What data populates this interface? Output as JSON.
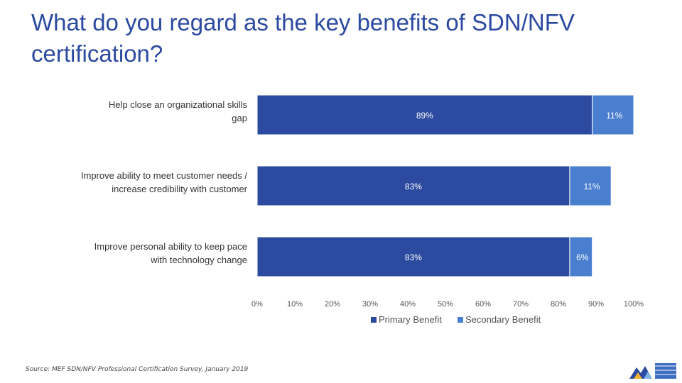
{
  "slide": {
    "title": "What do you regard as the key benefits of SDN/NFV certification?",
    "source": "Source: MEF SDN/NFV Professional Certification Survey, January 2019"
  },
  "colors": {
    "primary": "#2b4aa0",
    "secondary": "#4a7fcf",
    "label_text": "#333333",
    "axis_text": "#555555",
    "title": "#2b4aa0"
  },
  "chart_data": {
    "type": "bar",
    "orientation": "horizontal",
    "stacked": true,
    "title": "",
    "categories": [
      [
        "Help close an organizational skills",
        "gap"
      ],
      [
        "Improve ability to meet customer needs /",
        "increase credibility with customer"
      ],
      [
        "Improve personal ability to keep pace",
        "with technology change"
      ]
    ],
    "series": [
      {
        "name": "Primary Benefit",
        "values": [
          89,
          83,
          83
        ],
        "labels": [
          "89%",
          "83%",
          "83%"
        ],
        "color": "#2b4aa0"
      },
      {
        "name": "Secondary Benefit",
        "values": [
          11,
          11,
          6
        ],
        "labels": [
          "11%",
          "11%",
          "6%"
        ],
        "color": "#4a7fcf"
      }
    ],
    "xlim": [
      0,
      100
    ],
    "xticks": [
      0,
      10,
      20,
      30,
      40,
      50,
      60,
      70,
      80,
      90,
      100
    ],
    "xtick_labels": [
      "0%",
      "10%",
      "20%",
      "30%",
      "40%",
      "50%",
      "60%",
      "70%",
      "80%",
      "90%",
      "100%"
    ],
    "legend": "bottom-center",
    "grid": false
  }
}
